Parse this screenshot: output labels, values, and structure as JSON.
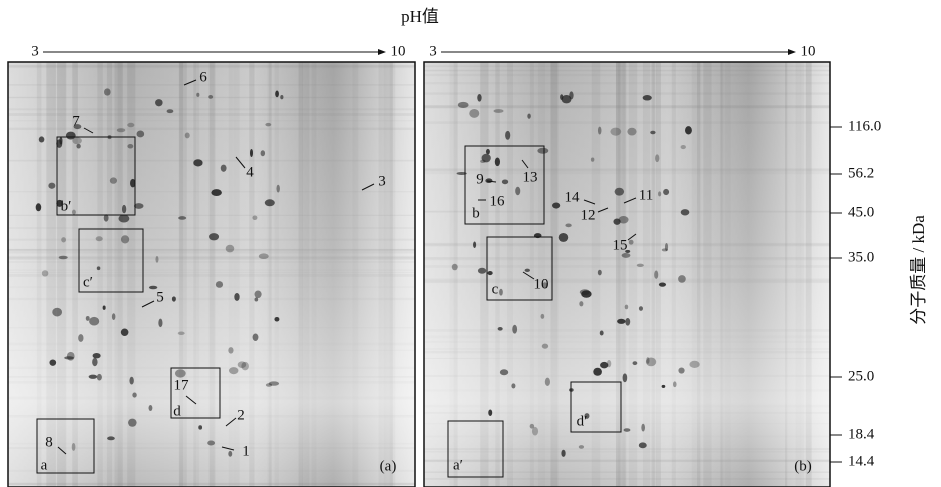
{
  "title": "pH值",
  "ph_axis": {
    "start": "3",
    "end": "10"
  },
  "mw_axis": {
    "title": "分子质量 / kDa",
    "ticks": [
      "116.0",
      "56.2",
      "45.0",
      "35.0",
      "25.0",
      "18.4",
      "14.4"
    ]
  },
  "panels": [
    {
      "label": "(a)",
      "spots": [
        "1",
        "2",
        "3",
        "4",
        "5",
        "6",
        "7",
        "8",
        "17"
      ],
      "regions": [
        "a",
        "b′",
        "c′",
        "d"
      ]
    },
    {
      "label": "(b)",
      "spots": [
        "9",
        "10",
        "11",
        "12",
        "13",
        "14",
        "15",
        "16"
      ],
      "regions": [
        "a′",
        "b",
        "c",
        "d′"
      ]
    }
  ]
}
